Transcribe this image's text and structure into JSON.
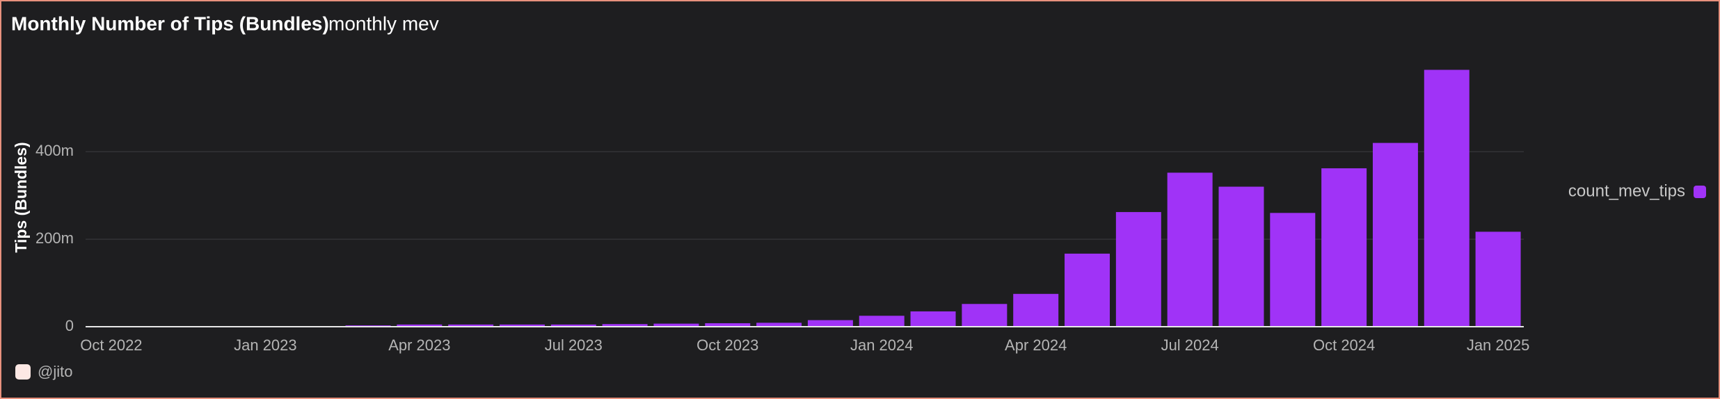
{
  "chart_data": {
    "type": "bar",
    "title": "Monthly Number of Tips (Bundles)",
    "subtitle": "monthly mev",
    "y_label": "Tips (Bundles)",
    "footer": "@jito",
    "categories": [
      "Oct 2022",
      null,
      null,
      "Jan 2023",
      null,
      null,
      "Apr 2023",
      null,
      null,
      "Jul 2023",
      null,
      null,
      "Oct 2023",
      null,
      null,
      "Jan 2024",
      null,
      null,
      "Apr 2024",
      null,
      null,
      "Jul 2024",
      null,
      null,
      "Oct 2024",
      null,
      null,
      "Jan 2025"
    ],
    "series": [
      {
        "name": "count_mev_tips",
        "color": "#a033f7",
        "values": [
          1,
          1,
          1,
          1,
          1,
          3,
          5,
          5,
          5,
          5,
          6,
          7,
          8,
          9,
          15,
          25,
          35,
          52,
          75,
          167,
          262,
          352,
          320,
          260,
          362,
          420,
          587,
          217
        ]
      }
    ],
    "ylim": [
      0,
      610
    ],
    "yticks": [
      0,
      {
        "value": 200,
        "label": "200m"
      },
      {
        "value": 400,
        "label": "400m"
      }
    ],
    "grid": true,
    "legend": "right"
  }
}
